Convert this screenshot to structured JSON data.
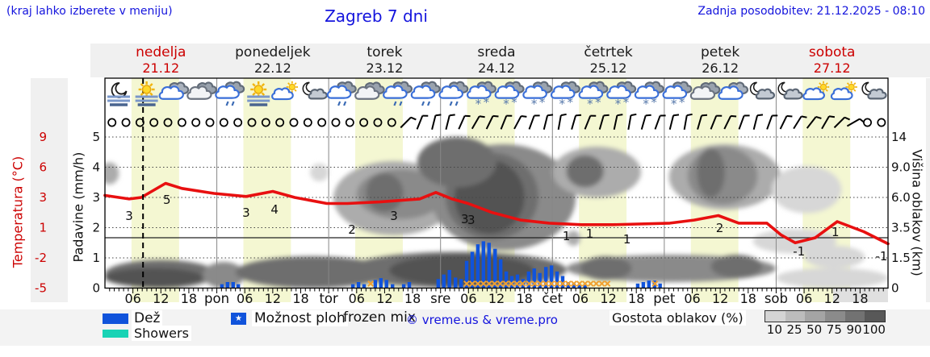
{
  "header": {
    "hint": "(kraj lahko izberete v meniju)",
    "title": "Zagreb 7 dni",
    "last_update": "Zadnja posodobitev: 21.12.2025 - 08:10"
  },
  "days": [
    {
      "name": "nedelja",
      "date": "21.12",
      "highlight": true
    },
    {
      "name": "ponedeljek",
      "date": "22.12",
      "highlight": false
    },
    {
      "name": "torek",
      "date": "23.12",
      "highlight": false
    },
    {
      "name": "sreda",
      "date": "24.12",
      "highlight": false
    },
    {
      "name": "četrtek",
      "date": "25.12",
      "highlight": false
    },
    {
      "name": "petek",
      "date": "26.12",
      "highlight": false
    },
    {
      "name": "sobota",
      "date": "27.12",
      "highlight": true
    }
  ],
  "axes": {
    "temp_label": "Temperatura (°C)",
    "precip_label": "Padavine (mm/h)",
    "cloud_label": "Višina oblakov (km)",
    "temp_ticks": [
      "9",
      "6",
      "3",
      "1",
      "-2",
      "-5"
    ],
    "precip_ticks": [
      "5",
      "4",
      "3",
      "2",
      "1",
      "0"
    ],
    "cloud_ticks": [
      "14",
      "9.0",
      "6.0",
      "3.5",
      "1.5",
      "0"
    ],
    "hour_labels": [
      "06",
      "12",
      "18"
    ],
    "day_abbrevs": [
      "pon",
      "tor",
      "sre",
      "čet",
      "pet",
      "sob"
    ]
  },
  "legend": {
    "rain_label": "Dež",
    "rain_color": "#1053db",
    "showers_label": "Showers",
    "showers_color": "#19d3b5",
    "chance_label": "Možnost ploh",
    "chance_star": "★",
    "frozen_label": "frozen mix",
    "copyright": "© vreme.us & vreme.pro",
    "cloud_density_label": "Gostota oblakov (%)",
    "cloud_density_ticks": [
      "10",
      "25",
      "50",
      "75",
      "90",
      "100"
    ],
    "cloud_density_colors": [
      "#d4d4d4",
      "#bcbcbc",
      "#a4a4a4",
      "#8b8b8b",
      "#727272",
      "#585858"
    ]
  },
  "chart_data": {
    "type": "meteogram",
    "hours_span": 168,
    "now_hour": 8.17,
    "daylight_band_hours": [
      5.7,
      15.9
    ],
    "temp_scale_c": [
      9,
      6,
      3,
      1,
      -2,
      -5
    ],
    "precip_scale_mm": [
      5,
      4,
      3,
      2,
      1,
      0
    ],
    "cloud_scale_km": [
      14,
      9,
      6,
      3.5,
      1.5,
      0
    ],
    "freezing_line_c": 0,
    "temperature_c": [
      [
        0,
        3.2
      ],
      [
        5.2,
        2.9
      ],
      [
        7.8,
        3.0
      ],
      [
        13,
        4.4
      ],
      [
        16.5,
        3.9
      ],
      [
        23.4,
        3.4
      ],
      [
        30.3,
        3.1
      ],
      [
        36,
        3.6
      ],
      [
        40.7,
        3.0
      ],
      [
        47.6,
        2.6
      ],
      [
        52,
        2.6
      ],
      [
        58.9,
        2.7
      ],
      [
        67.5,
        2.9
      ],
      [
        71,
        3.5
      ],
      [
        74.5,
        2.9
      ],
      [
        77.9,
        2.6
      ],
      [
        83.1,
        2.0
      ],
      [
        89.2,
        1.5
      ],
      [
        95.3,
        1.3
      ],
      [
        102.2,
        1.2
      ],
      [
        109.1,
        1.2
      ],
      [
        121.2,
        1.3
      ],
      [
        126.4,
        1.5
      ],
      [
        131.6,
        1.8
      ],
      [
        136,
        1.3
      ],
      [
        142,
        1.3
      ],
      [
        145,
        0.3
      ],
      [
        148.1,
        -0.5
      ],
      [
        152.4,
        0.0
      ],
      [
        157.1,
        1.4
      ],
      [
        162.8,
        0.6
      ],
      [
        168,
        -0.6
      ]
    ],
    "temp_labels": [
      [
        "3",
        5.2,
        1.77
      ],
      [
        "5",
        13.3,
        2.84
      ],
      [
        "3",
        30.3,
        1.99
      ],
      [
        "4",
        36.4,
        2.2
      ],
      [
        "2",
        53,
        0.8
      ],
      [
        "3",
        62,
        1.77
      ],
      [
        "3",
        77.2,
        1.56
      ],
      [
        "3",
        78.6,
        1.5
      ],
      [
        "1",
        99,
        0.16
      ],
      [
        "1",
        104,
        0.4
      ],
      [
        "1",
        112,
        -0.16
      ],
      [
        "2",
        131.9,
        0.96
      ],
      [
        "-1",
        148.9,
        -1.36
      ],
      [
        "1",
        156.7,
        0.56
      ],
      [
        "-1",
        166.6,
        -1.84
      ]
    ],
    "precip_mm": [
      [
        25.1,
        0.13
      ],
      [
        26.3,
        0.2
      ],
      [
        27.5,
        0.2
      ],
      [
        28.6,
        0.13
      ],
      [
        53.2,
        0.13
      ],
      [
        54.4,
        0.2
      ],
      [
        55.6,
        0.13
      ],
      [
        58,
        0.27
      ],
      [
        59.2,
        0.33
      ],
      [
        60.4,
        0.27
      ],
      [
        61.7,
        0.13
      ],
      [
        64.1,
        0.13
      ],
      [
        65.3,
        0.2
      ],
      [
        71.5,
        0.3
      ],
      [
        72.7,
        0.45
      ],
      [
        73.9,
        0.6
      ],
      [
        75.2,
        0.35
      ],
      [
        76.4,
        0.3
      ],
      [
        77.6,
        0.9
      ],
      [
        78.8,
        1.2
      ],
      [
        80,
        1.45
      ],
      [
        81.2,
        1.55
      ],
      [
        82.4,
        1.5
      ],
      [
        83.7,
        1.3
      ],
      [
        84.9,
        0.95
      ],
      [
        86.1,
        0.55
      ],
      [
        87.3,
        0.4
      ],
      [
        88.5,
        0.45
      ],
      [
        89.7,
        0.3
      ],
      [
        90.9,
        0.55
      ],
      [
        92.1,
        0.65
      ],
      [
        93.3,
        0.5
      ],
      [
        94.6,
        0.7
      ],
      [
        95.8,
        0.75
      ],
      [
        97,
        0.55
      ],
      [
        98.2,
        0.4
      ],
      [
        99.4,
        0.2
      ],
      [
        100.6,
        0.15
      ],
      [
        101.8,
        0.1
      ],
      [
        103,
        0.1
      ],
      [
        114.3,
        0.15
      ],
      [
        115.5,
        0.2
      ],
      [
        116.7,
        0.25
      ],
      [
        117.9,
        0.25
      ],
      [
        119.1,
        0.15
      ]
    ],
    "frozen_mix_hours": [
      57,
      77.6,
      78.8,
      80,
      81.2,
      82.4,
      83.6,
      84.8,
      86,
      87.2,
      88.4,
      89.6,
      91,
      92.2,
      93.4,
      94.6,
      95.8,
      97,
      98.2,
      99.4,
      100.6,
      101.8,
      103,
      104.2,
      105.4,
      106.6,
      107.8,
      118
    ],
    "wind_3h": [
      null,
      null,
      null,
      null,
      null,
      null,
      null,
      null,
      null,
      null,
      null,
      null,
      null,
      null,
      null,
      null,
      null,
      null,
      null,
      null,
      null,
      45,
      22,
      14,
      14,
      24,
      30,
      26,
      22,
      28,
      20,
      14,
      10,
      16,
      22,
      16,
      12,
      10,
      16,
      20,
      14,
      10,
      16,
      22,
      26,
      20,
      14,
      20,
      26,
      32,
      38,
      30,
      45,
      60,
      null,
      null
    ],
    "weather_icons": [
      "moon-fog",
      "sun-fog",
      "cloud-blue",
      "cloud",
      "cloud-drizzle",
      "sun-fog",
      "sun-cloud",
      "moon-cloud",
      "cloud-drizzle",
      "cloud",
      "cloud-drizzle",
      "cloud-drizzle",
      "cloud-drizzle",
      "cloud-snow",
      "cloud-snow",
      "cloud-snow",
      "cloud-snow",
      "cloud-snow",
      "cloud-snow",
      "cloud-snow",
      "cloud-snow",
      "cloud",
      "cloud-blue",
      "moon-cloud",
      "moon-cloud",
      "sun-cloud",
      "sun-cloud",
      "moon-cloud"
    ],
    "cloud_blobs": [
      [
        0,
        24,
        0,
        1.4,
        90
      ],
      [
        0,
        21,
        0.05,
        1.0,
        100
      ],
      [
        21,
        30,
        0,
        1.3,
        75
      ],
      [
        28,
        61,
        0,
        1.6,
        90
      ],
      [
        52,
        99,
        0,
        1.9,
        90
      ],
      [
        61,
        92,
        0.1,
        1.7,
        100
      ],
      [
        99,
        144,
        0.3,
        1.7,
        75
      ],
      [
        102,
        113,
        0.4,
        1.6,
        90
      ],
      [
        130,
        141,
        0.5,
        1.7,
        90
      ],
      [
        144,
        168,
        0,
        1.0,
        25
      ],
      [
        150,
        163,
        1.0,
        2.3,
        25
      ],
      [
        -1,
        3,
        7.3,
        9.8,
        50
      ],
      [
        44,
        48,
        7.6,
        9.6,
        25
      ],
      [
        49,
        75,
        3.0,
        10,
        50
      ],
      [
        54,
        73,
        4.2,
        8.8,
        75
      ],
      [
        56,
        64,
        4.8,
        8.4,
        90
      ],
      [
        70,
        101,
        2.0,
        12.8,
        75
      ],
      [
        73,
        93,
        2.7,
        11.4,
        90
      ],
      [
        75,
        90,
        3.1,
        10.2,
        100
      ],
      [
        67,
        84,
        7.0,
        14,
        90
      ],
      [
        96,
        115,
        6.0,
        12.4,
        50
      ],
      [
        99,
        107,
        7.0,
        11.0,
        90
      ],
      [
        99,
        102,
        2.3,
        3.3,
        50
      ],
      [
        121,
        145,
        5.0,
        12.8,
        50
      ],
      [
        125,
        140,
        5.4,
        12.4,
        75
      ],
      [
        127,
        133,
        6.0,
        12.2,
        90
      ],
      [
        143,
        158,
        4.7,
        9.2,
        25
      ],
      [
        139,
        157,
        1.8,
        3.4,
        25
      ]
    ],
    "shade_colors": {
      "25": "#d7d7d7",
      "50": "#acacac",
      "75": "#8a8a8a",
      "90": "#6e6e6e",
      "100": "#525252"
    },
    "temp_line_color": "#e81010",
    "band_color": "#f4f7d2"
  }
}
